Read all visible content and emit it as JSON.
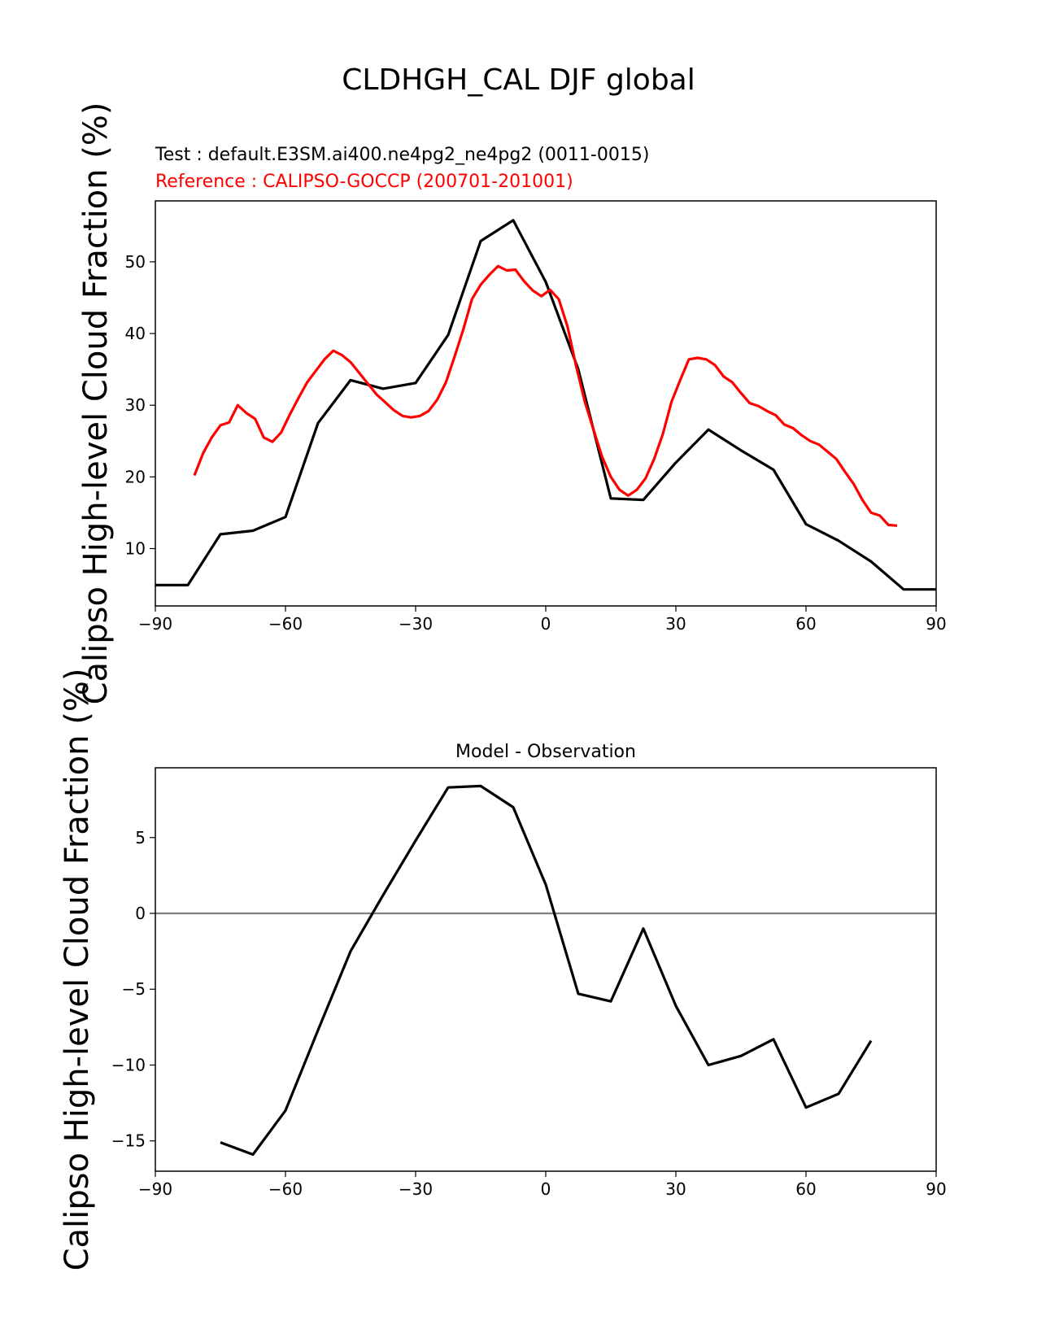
{
  "chart_data": {
    "type": "line",
    "title": "CLDHGH_CAL DJF global",
    "panels": [
      {
        "name": "main",
        "test_label": "Test : default.E3SM.ai400.ne4pg2_ne4pg2 (0011-0015)",
        "ref_label": "Reference : CALIPSO-GOCCP (200701-201001)",
        "ylabel": "Calipso High-level Cloud Fraction (%)",
        "xlim": [
          -90,
          90
        ],
        "ylim": [
          2,
          58.5
        ],
        "xticks": [
          -90,
          -60,
          -30,
          0,
          30,
          60,
          90
        ],
        "xtick_labels": [
          "−90",
          "−60",
          "−30",
          "0",
          "30",
          "60",
          "90"
        ],
        "yticks": [
          10,
          20,
          30,
          40,
          50
        ],
        "ytick_labels": [
          "10",
          "20",
          "30",
          "40",
          "50"
        ],
        "series": [
          {
            "name": "Test",
            "color": "#000000",
            "x": [
              -90,
              -82.5,
              -75,
              -67.5,
              -60,
              -52.5,
              -45,
              -37.5,
              -30,
              -22.5,
              -15,
              -7.5,
              0,
              7.5,
              15,
              22.5,
              30,
              37.5,
              45,
              52.5,
              60,
              67.5,
              75,
              82.5,
              90
            ],
            "y": [
              4.9,
              4.9,
              12.0,
              12.5,
              14.4,
              27.5,
              33.5,
              32.3,
              33.1,
              39.8,
              52.9,
              55.8,
              47.2,
              35.0,
              17.0,
              16.8,
              22.0,
              26.6,
              23.7,
              21.0,
              13.4,
              11.1,
              8.2,
              4.3,
              4.3
            ]
          },
          {
            "name": "Reference",
            "color": "#ff0000",
            "x": [
              -81,
              -79,
              -77,
              -75,
              -73,
              -71,
              -69,
              -67,
              -65,
              -63,
              -61,
              -59,
              -57,
              -55,
              -53,
              -51,
              -49,
              -47,
              -45,
              -43,
              -41,
              -39,
              -37,
              -35,
              -33,
              -31,
              -29,
              -27,
              -25,
              -23,
              -21,
              -19,
              -17,
              -15,
              -13,
              -11,
              -9,
              -7,
              -5,
              -3,
              -1,
              1,
              3,
              5,
              7,
              9,
              11,
              13,
              15,
              17,
              19,
              21,
              23,
              25,
              27,
              29,
              31,
              33,
              35,
              37,
              39,
              41,
              43,
              45,
              47,
              49,
              51,
              53,
              55,
              57,
              59,
              61,
              63,
              65,
              67,
              69,
              71,
              73,
              75,
              77,
              79,
              81
            ],
            "y": [
              20.2,
              23.3,
              25.5,
              27.2,
              27.6,
              30.0,
              28.9,
              28.1,
              25.5,
              24.9,
              26.2,
              28.7,
              31.0,
              33.2,
              34.8,
              36.4,
              37.6,
              37.0,
              36.0,
              34.5,
              33.0,
              31.5,
              30.4,
              29.3,
              28.5,
              28.3,
              28.5,
              29.2,
              30.8,
              33.2,
              36.8,
              40.6,
              44.8,
              46.8,
              48.2,
              49.4,
              48.8,
              48.9,
              47.3,
              46.0,
              45.2,
              46.1,
              44.8,
              41.0,
              35.5,
              30.5,
              26.6,
              22.8,
              20.0,
              18.2,
              17.4,
              18.2,
              19.8,
              22.5,
              26.0,
              30.5,
              33.5,
              36.4,
              36.6,
              36.4,
              35.6,
              34.0,
              33.2,
              31.7,
              30.3,
              29.9,
              29.2,
              28.6,
              27.3,
              26.8,
              25.8,
              25.0,
              24.5,
              23.5,
              22.5,
              20.7,
              19.0,
              16.8,
              15.0,
              14.6,
              13.3,
              13.2
            ]
          }
        ]
      },
      {
        "name": "difference",
        "title": "Model - Observation",
        "ylabel": "Calipso High-level Cloud Fraction (%)",
        "xlim": [
          -90,
          90
        ],
        "ylim": [
          -17,
          9.6
        ],
        "xticks": [
          -90,
          -60,
          -30,
          0,
          30,
          60,
          90
        ],
        "xtick_labels": [
          "−90",
          "−60",
          "−30",
          "0",
          "30",
          "60",
          "90"
        ],
        "yticks": [
          -15,
          -10,
          -5,
          0,
          5
        ],
        "ytick_labels": [
          "−15",
          "−10",
          "−5",
          "0",
          "5"
        ],
        "zero_line": {
          "value": 0,
          "color": "#808080"
        },
        "series": [
          {
            "name": "Model - Observation",
            "color": "#000000",
            "x": [
              -75,
              -67.5,
              -60,
              -52.5,
              -45,
              -37.5,
              -30,
              -22.5,
              -15,
              -7.5,
              0,
              7.5,
              15,
              22.5,
              30,
              37.5,
              45,
              52.5,
              60,
              67.5,
              75
            ],
            "y": [
              -15.1,
              -15.9,
              -13.0,
              -7.7,
              -2.5,
              1.2,
              4.8,
              8.3,
              8.4,
              7.0,
              1.9,
              -5.3,
              -5.8,
              -1.0,
              -6.1,
              -10.0,
              -9.4,
              -8.3,
              -12.8,
              -11.9,
              -8.4
            ]
          }
        ]
      }
    ]
  }
}
